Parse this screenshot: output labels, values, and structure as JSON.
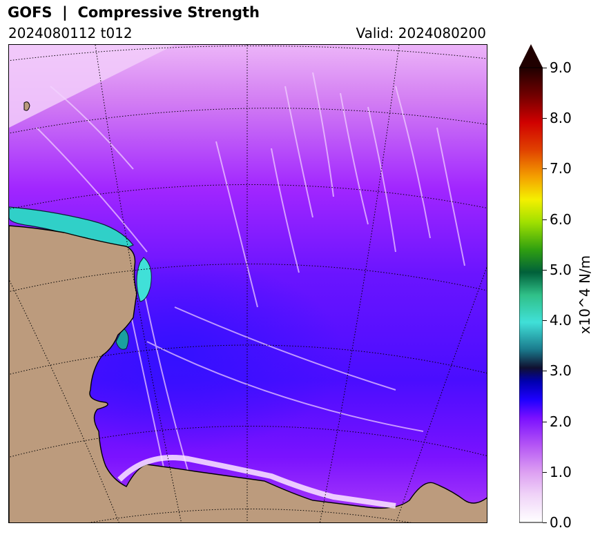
{
  "title": "GOFS  |  Compressive Strength",
  "subtitle_left": "2024080112 t012",
  "subtitle_right": "Valid: 2024080200",
  "colorbar": {
    "label": "x10^4 N/m",
    "min": 0.0,
    "max": 9.0,
    "extend": "max",
    "ticks": [
      "0.0",
      "1.0",
      "2.0",
      "3.0",
      "4.0",
      "5.0",
      "6.0",
      "7.0",
      "8.0",
      "9.0"
    ],
    "colormap": [
      "#ffffff",
      "#e8b6f2",
      "#c66af0",
      "#a000ff",
      "#2a00ff",
      "#0000c0",
      "#101060",
      "#1e8c9a",
      "#40e0d0",
      "#20c080",
      "#006838",
      "#40a010",
      "#a0e000",
      "#f0f000",
      "#f0a000",
      "#e04000",
      "#d00000",
      "#800000",
      "#200000"
    ]
  },
  "map": {
    "land_color": "#bc9b7d",
    "coastline_color": "#000000",
    "graticule": "dotted",
    "shading": {
      "outer_ice": "#d58cf2",
      "mid_ice": "#a320ff",
      "thick_ice": "#4a10ff",
      "ridge": "#f0c8ff"
    }
  }
}
